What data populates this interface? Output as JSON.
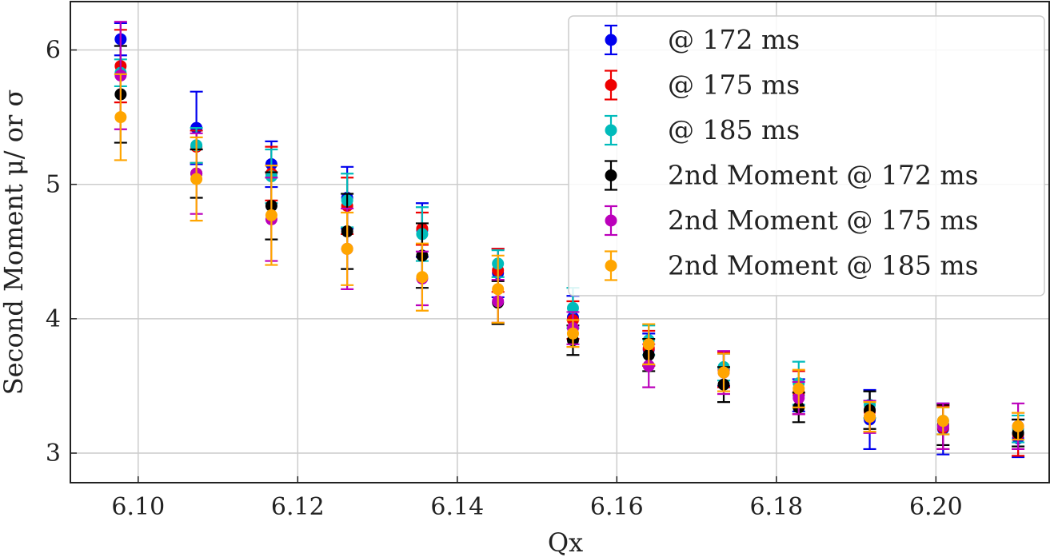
{
  "chart_data": {
    "type": "scatter",
    "xlabel": "Qx",
    "ylabel": "Second Moment μ/ or σ",
    "xlim": [
      6.0915,
      6.2142
    ],
    "ylim": [
      2.78,
      6.36
    ],
    "x_ticks": [
      "6.10",
      "6.12",
      "6.14",
      "6.16",
      "6.18",
      "6.20"
    ],
    "x_tick_values": [
      6.1,
      6.12,
      6.14,
      6.16,
      6.18,
      6.2
    ],
    "y_ticks": [
      "3",
      "4",
      "5",
      "6"
    ],
    "y_tick_values": [
      3,
      4,
      5,
      6
    ],
    "grid": true,
    "legend_position": "top-right",
    "x": [
      6.0978,
      6.1073,
      6.1167,
      6.1262,
      6.1356,
      6.1451,
      6.1545,
      6.164,
      6.1734,
      6.1828,
      6.1917,
      6.2009,
      6.2103
    ],
    "series": [
      {
        "name": "@ 172 ms",
        "color": "#0000ee",
        "y": [
          6.08,
          5.42,
          5.15,
          4.9,
          4.66,
          4.34,
          4.01,
          3.77,
          3.62,
          3.43,
          3.25,
          3.18,
          3.11
        ],
        "err": [
          0.12,
          0.27,
          0.17,
          0.23,
          0.2,
          0.18,
          0.16,
          0.12,
          0.12,
          0.12,
          0.22,
          0.19,
          0.14
        ]
      },
      {
        "name": "@ 175 ms",
        "color": "#ee0000",
        "y": [
          5.88,
          5.28,
          5.08,
          4.84,
          4.67,
          4.36,
          3.99,
          3.78,
          3.62,
          3.45,
          3.31,
          3.19,
          3.14
        ],
        "err": [
          0.27,
          0.12,
          0.2,
          0.21,
          0.12,
          0.16,
          0.14,
          0.13,
          0.13,
          0.16,
          0.15,
          0.16,
          0.16
        ]
      },
      {
        "name": "@ 185 ms",
        "color": "#00bbbb",
        "y": [
          5.83,
          5.29,
          5.06,
          4.88,
          4.63,
          4.41,
          4.08,
          3.84,
          3.64,
          3.52,
          3.36,
          3.24,
          3.18
        ],
        "err": [
          0.1,
          0.13,
          0.2,
          0.2,
          0.2,
          0.1,
          0.15,
          0.11,
          0.1,
          0.16,
          0.1,
          0.1,
          0.1
        ]
      },
      {
        "name": "2nd Moment @ 172 ms",
        "color": "#000000",
        "y": [
          5.67,
          5.08,
          4.84,
          4.65,
          4.47,
          4.12,
          3.84,
          3.73,
          3.51,
          3.34,
          3.32,
          3.21,
          3.15
        ],
        "err": [
          0.36,
          0.18,
          0.25,
          0.28,
          0.24,
          0.16,
          0.11,
          0.12,
          0.13,
          0.11,
          0.14,
          0.15,
          0.1
        ]
      },
      {
        "name": "2nd Moment @ 175 ms",
        "color": "#bb00bb",
        "y": [
          5.81,
          5.08,
          4.74,
          4.52,
          4.3,
          4.13,
          3.93,
          3.65,
          3.6,
          3.41,
          3.27,
          3.2,
          3.2
        ],
        "err": [
          0.4,
          0.3,
          0.31,
          0.3,
          0.2,
          0.16,
          0.12,
          0.16,
          0.16,
          0.12,
          0.12,
          0.17,
          0.17
        ]
      },
      {
        "name": "2nd Moment @ 185 ms",
        "color": "#ffa500",
        "y": [
          5.5,
          5.04,
          4.77,
          4.52,
          4.31,
          4.22,
          3.89,
          3.81,
          3.6,
          3.48,
          3.27,
          3.24,
          3.2
        ],
        "err": [
          0.32,
          0.31,
          0.37,
          0.27,
          0.25,
          0.25,
          0.1,
          0.15,
          0.14,
          0.14,
          0.11,
          0.1,
          0.1
        ]
      }
    ]
  }
}
